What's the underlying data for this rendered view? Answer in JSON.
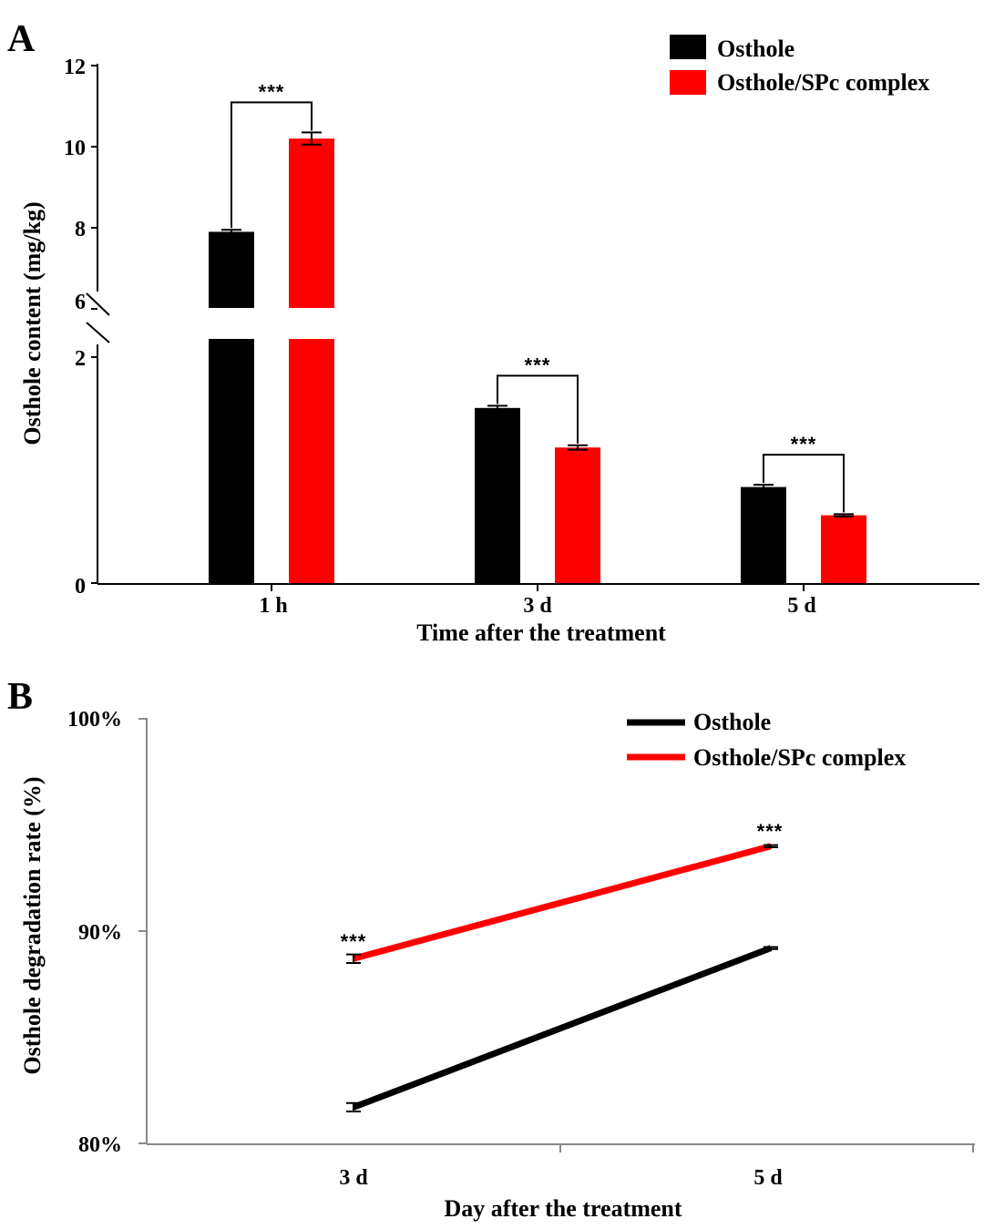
{
  "figure": {
    "panel_a_letter": "A",
    "panel_b_letter": "B"
  },
  "colors": {
    "osthole": "#000000",
    "complex": "#ff0000"
  },
  "chart_data": [
    {
      "type": "bar",
      "panel": "A",
      "categories": [
        "1 h",
        "3 d",
        "5 d"
      ],
      "series": [
        {
          "name": "Osthole",
          "values": [
            7.9,
            1.55,
            0.85
          ],
          "errors": [
            0.05,
            0.02,
            0.02
          ]
        },
        {
          "name": "Osthole/SPc complex",
          "values": [
            10.2,
            1.2,
            0.6
          ],
          "errors": [
            0.15,
            0.02,
            0.01
          ]
        }
      ],
      "title": "",
      "xlabel": "Time after the treatment",
      "ylabel": "Osthole content (mg/kg)",
      "ylim_lower": [
        0,
        2
      ],
      "ylim_upper": [
        6,
        12
      ],
      "yticks_lower": [
        "0",
        "2"
      ],
      "yticks_upper": [
        "6",
        "8",
        "10",
        "12"
      ],
      "axis_break": true,
      "significance": [
        "***",
        "***",
        "***"
      ],
      "legend_position": "top-right",
      "grid": false
    },
    {
      "type": "line",
      "panel": "B",
      "x": [
        "3 d",
        "5 d"
      ],
      "series": [
        {
          "name": "Osthole",
          "values": [
            81.7,
            89.2
          ],
          "errors": [
            0.2,
            0.05
          ]
        },
        {
          "name": "Osthole/SPc complex",
          "values": [
            88.7,
            94.0
          ],
          "errors": [
            0.2,
            0.05
          ]
        }
      ],
      "title": "",
      "xlabel": "Day after the treatment",
      "ylabel": "Osthole degradation rate (%)",
      "ylim": [
        80,
        100
      ],
      "yticks": [
        "80%",
        "90%",
        "100%"
      ],
      "significance": [
        "***",
        "***"
      ],
      "legend_position": "top-right",
      "grid": false
    }
  ]
}
